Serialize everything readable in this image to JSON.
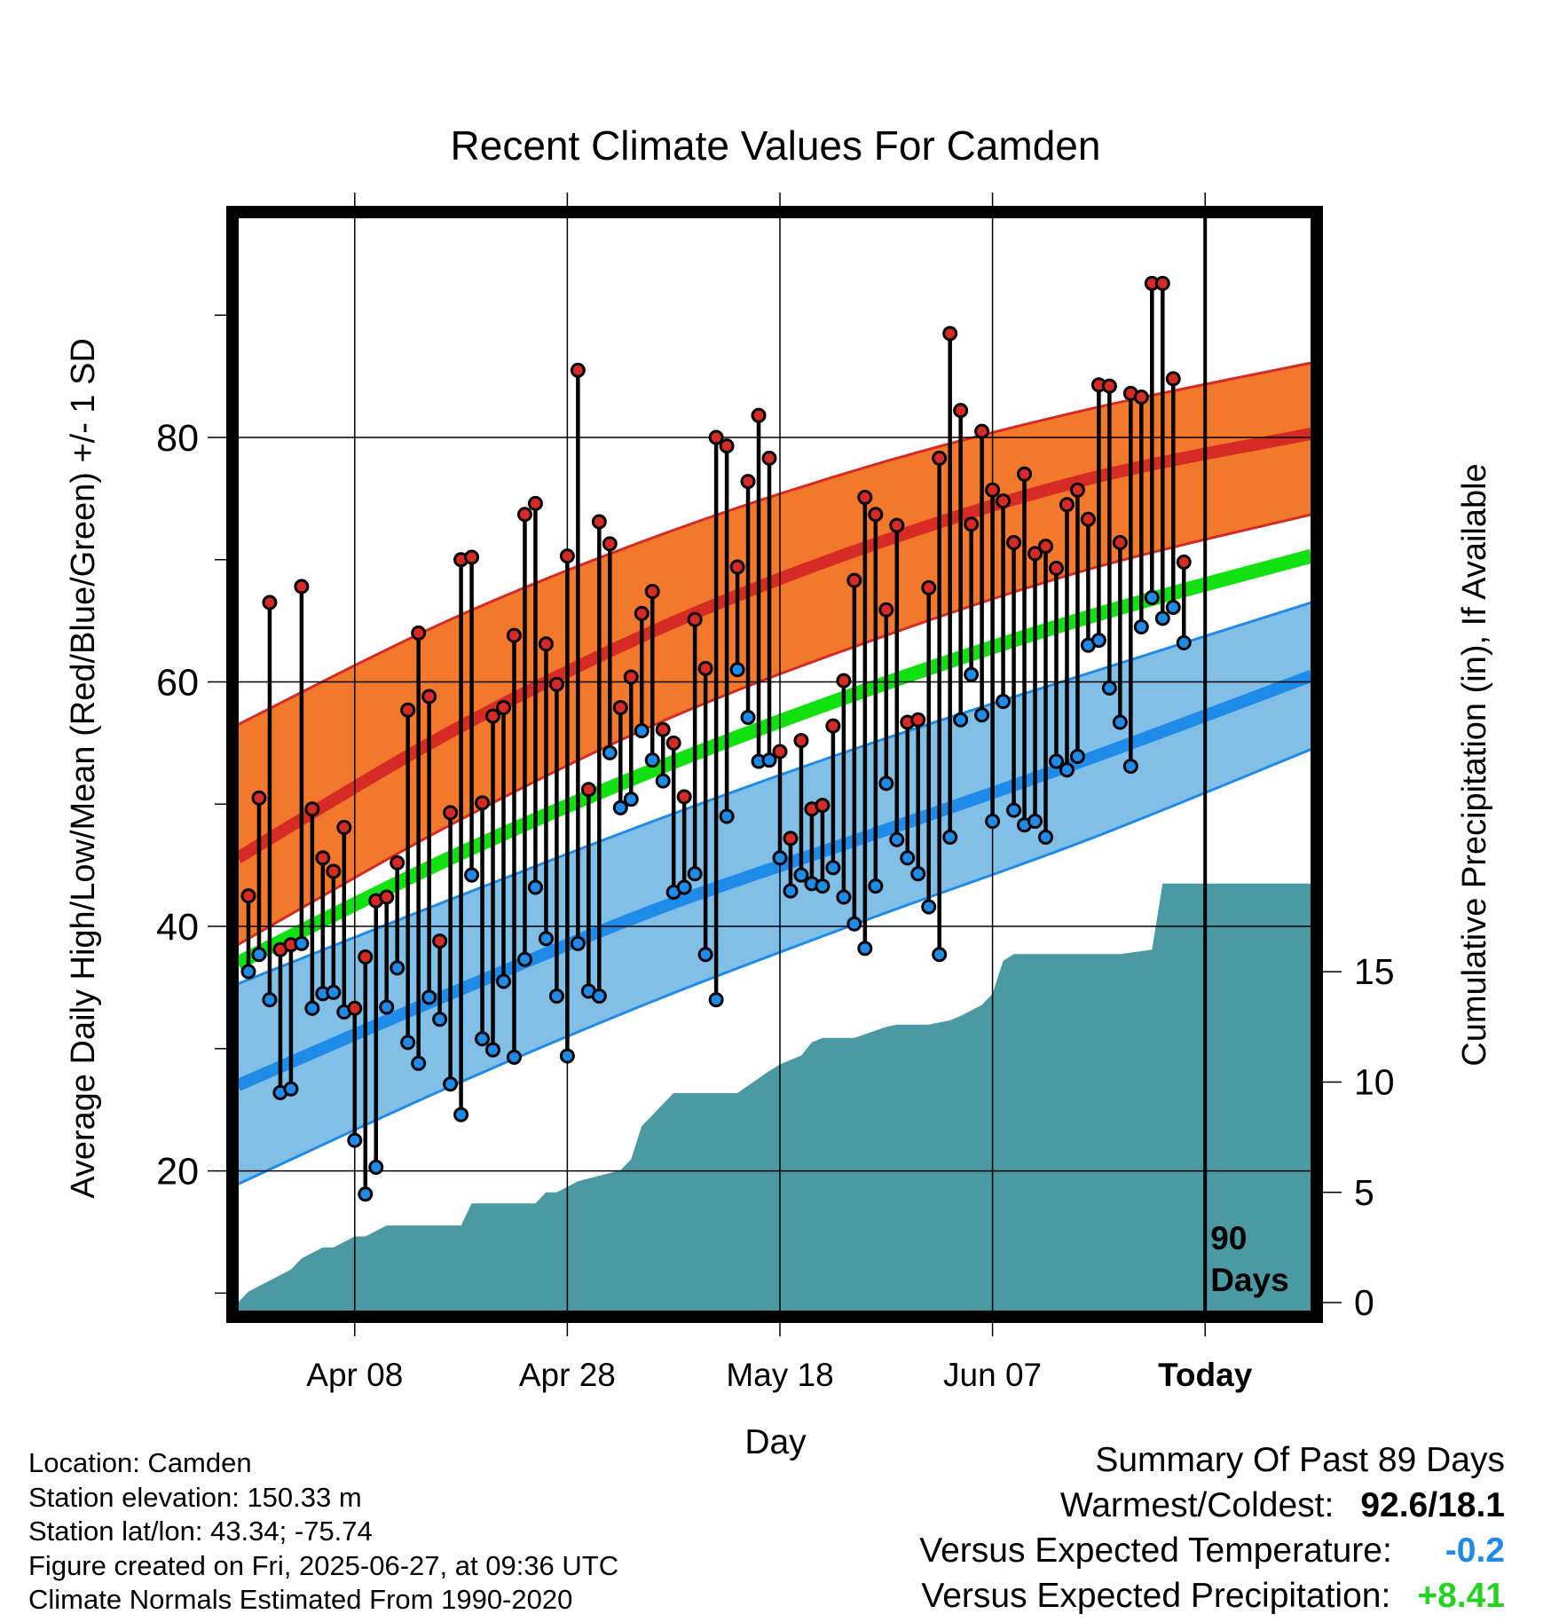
{
  "chart_data": {
    "type": "line",
    "title": "Recent Climate Values For Camden",
    "xlabel": "Day",
    "ylabel": "Average Daily High/Low/Mean (Red/Blue/Green) +/- 1 SD",
    "y2label": "Cumulative Precipitation (in), If Available",
    "x_ticks": [
      "Apr 08",
      "Apr 28",
      "May 18",
      "Jun 07",
      "Today"
    ],
    "x_tick_days": [
      "2025-04-08",
      "2025-04-28",
      "2025-05-18",
      "2025-06-07",
      "2025-06-27"
    ],
    "x_range": [
      "2025-03-28",
      "2025-07-07"
    ],
    "ylim": [
      8.5,
      98
    ],
    "y_ticks": [
      20,
      40,
      60,
      80
    ],
    "y2lim": [
      -0.4,
      49.2
    ],
    "y2_ticks": [
      0,
      5,
      10,
      15
    ],
    "grid": true,
    "today": "2025-06-27",
    "today_label": "90 Days",
    "normals": {
      "dates": [
        "2025-03-28",
        "2025-04-17",
        "2025-05-07",
        "2025-05-27",
        "2025-06-16",
        "2025-07-07"
      ],
      "high_mean": [
        45.6,
        55.9,
        64.5,
        71.3,
        76.6,
        80.3
      ],
      "high_upper": [
        56.5,
        65.1,
        72.1,
        77.8,
        82.3,
        86.1
      ],
      "high_lower": [
        38.5,
        48.3,
        56.8,
        63.5,
        69.2,
        73.7
      ],
      "low_mean": [
        27.0,
        34.5,
        41.6,
        47.6,
        53.7,
        60.5
      ],
      "low_upper": [
        35.3,
        42.2,
        48.9,
        55.1,
        60.7,
        66.5
      ],
      "low_lower": [
        18.9,
        26.9,
        34.2,
        40.8,
        47.1,
        54.5
      ],
      "avg_mean": [
        37.0,
        45.6,
        53.1,
        59.6,
        65.3,
        70.3
      ]
    },
    "series": [
      {
        "name": "Daily High",
        "values": [
          42.5,
          50.5,
          66.5,
          38.1,
          38.5,
          67.8,
          49.6,
          45.6,
          44.5,
          48.1,
          33.3,
          37.5,
          42.1,
          42.4,
          45.2,
          57.7,
          64.0,
          58.8,
          38.8,
          49.3,
          70.0,
          70.2,
          50.1,
          57.2,
          57.9,
          63.8,
          73.7,
          74.6,
          63.1,
          59.8,
          70.3,
          85.5,
          51.2,
          73.1,
          71.3,
          57.9,
          60.4,
          65.6,
          67.4,
          56.1,
          55.0,
          50.6,
          65.1,
          61.1,
          80.0,
          79.3,
          69.4,
          76.4,
          81.8,
          78.3,
          54.3,
          47.2,
          55.2,
          49.6,
          49.9,
          56.4,
          60.1,
          68.3,
          75.1,
          73.7,
          65.9,
          72.8,
          56.7,
          56.9,
          67.7,
          78.3,
          88.5,
          82.2,
          72.9,
          80.5,
          75.7,
          74.8,
          71.4,
          77.0,
          70.5,
          71.1,
          69.3,
          74.5,
          75.7,
          73.3,
          84.3,
          84.2,
          71.4,
          83.6,
          83.3,
          92.6,
          92.6,
          84.8,
          69.8
        ]
      },
      {
        "name": "Daily Low",
        "values": [
          36.3,
          37.7,
          34.0,
          26.4,
          26.7,
          38.6,
          33.3,
          34.5,
          34.6,
          33.0,
          22.5,
          18.1,
          20.3,
          33.4,
          36.6,
          30.5,
          28.8,
          34.2,
          32.4,
          27.1,
          24.6,
          44.2,
          30.8,
          29.9,
          35.5,
          29.3,
          37.3,
          43.2,
          39.0,
          34.3,
          29.4,
          38.6,
          34.7,
          34.3,
          54.2,
          49.7,
          50.4,
          56.0,
          53.6,
          51.9,
          42.8,
          43.2,
          44.3,
          37.7,
          34.0,
          49.0,
          61.0,
          57.1,
          53.5,
          53.6,
          45.6,
          42.9,
          44.2,
          43.5,
          43.3,
          44.8,
          42.4,
          40.2,
          38.2,
          43.3,
          51.7,
          47.1,
          45.6,
          44.3,
          41.6,
          37.7,
          47.3,
          56.9,
          60.6,
          57.3,
          48.6,
          58.4,
          49.5,
          48.3,
          48.6,
          47.3,
          53.5,
          52.8,
          53.9,
          63.0,
          63.4,
          59.5,
          56.7,
          53.1,
          64.5,
          66.9,
          65.2,
          66.1,
          63.2
        ]
      }
    ],
    "precipitation": {
      "dates": [
        "2025-03-29",
        "2025-03-31",
        "2025-04-02",
        "2025-04-03",
        "2025-04-05",
        "2025-04-06",
        "2025-04-08",
        "2025-04-09",
        "2025-04-11",
        "2025-04-13",
        "2025-04-18",
        "2025-04-19",
        "2025-04-20",
        "2025-04-25",
        "2025-04-26",
        "2025-04-27",
        "2025-04-29",
        "2025-05-03",
        "2025-05-04",
        "2025-05-05",
        "2025-05-06",
        "2025-05-07",
        "2025-05-08",
        "2025-05-14",
        "2025-05-17",
        "2025-05-18",
        "2025-05-20",
        "2025-05-21",
        "2025-05-22",
        "2025-05-25",
        "2025-05-28",
        "2025-05-29",
        "2025-06-01",
        "2025-06-03",
        "2025-06-04",
        "2025-06-06",
        "2025-06-07",
        "2025-06-08",
        "2025-06-09",
        "2025-06-19",
        "2025-06-22",
        "2025-06-23",
        "2025-06-27",
        "2025-07-07"
      ],
      "values": [
        0.5,
        1.0,
        1.5,
        2.0,
        2.5,
        2.5,
        3.0,
        3.0,
        3.5,
        3.5,
        3.5,
        4.5,
        4.5,
        4.5,
        5.0,
        5.0,
        5.5,
        6.0,
        6.5,
        8.0,
        8.5,
        9.0,
        9.5,
        9.5,
        10.5,
        10.8,
        11.2,
        11.8,
        12.0,
        12.0,
        12.5,
        12.6,
        12.6,
        12.8,
        13.0,
        13.5,
        14.0,
        15.5,
        15.8,
        15.8,
        16.0,
        19.0,
        19.0,
        19.0
      ]
    }
  },
  "info": [
    "Location: Camden",
    "Station elevation: 150.33 m",
    "Station lat/lon: 43.34; -75.74",
    "Figure created on Fri, 2025-06-27, at 09:36 UTC",
    "Climate Normals Estimated From 1990-2020"
  ],
  "summary": {
    "heading": "Summary Of Past 89 Days",
    "warmest_coldest_label": "Warmest/Coldest:",
    "warmest_coldest_value": "92.6/18.1",
    "temp_label": "Versus Expected Temperature:",
    "temp_value": "-0.2",
    "temp_color": "#1f8be8",
    "precip_label": "Versus Expected Precipitation:",
    "precip_value": "+8.41",
    "precip_color": "#22d322"
  },
  "colors": {
    "high_band": "#f2782c",
    "high_line": "#d62a24",
    "low_band": "#82bfe6",
    "low_line": "#1f8be8",
    "mean_line": "#11e011",
    "precip": "#4a99a3",
    "high_marker": "#d62a24",
    "low_marker": "#1f8be8"
  }
}
